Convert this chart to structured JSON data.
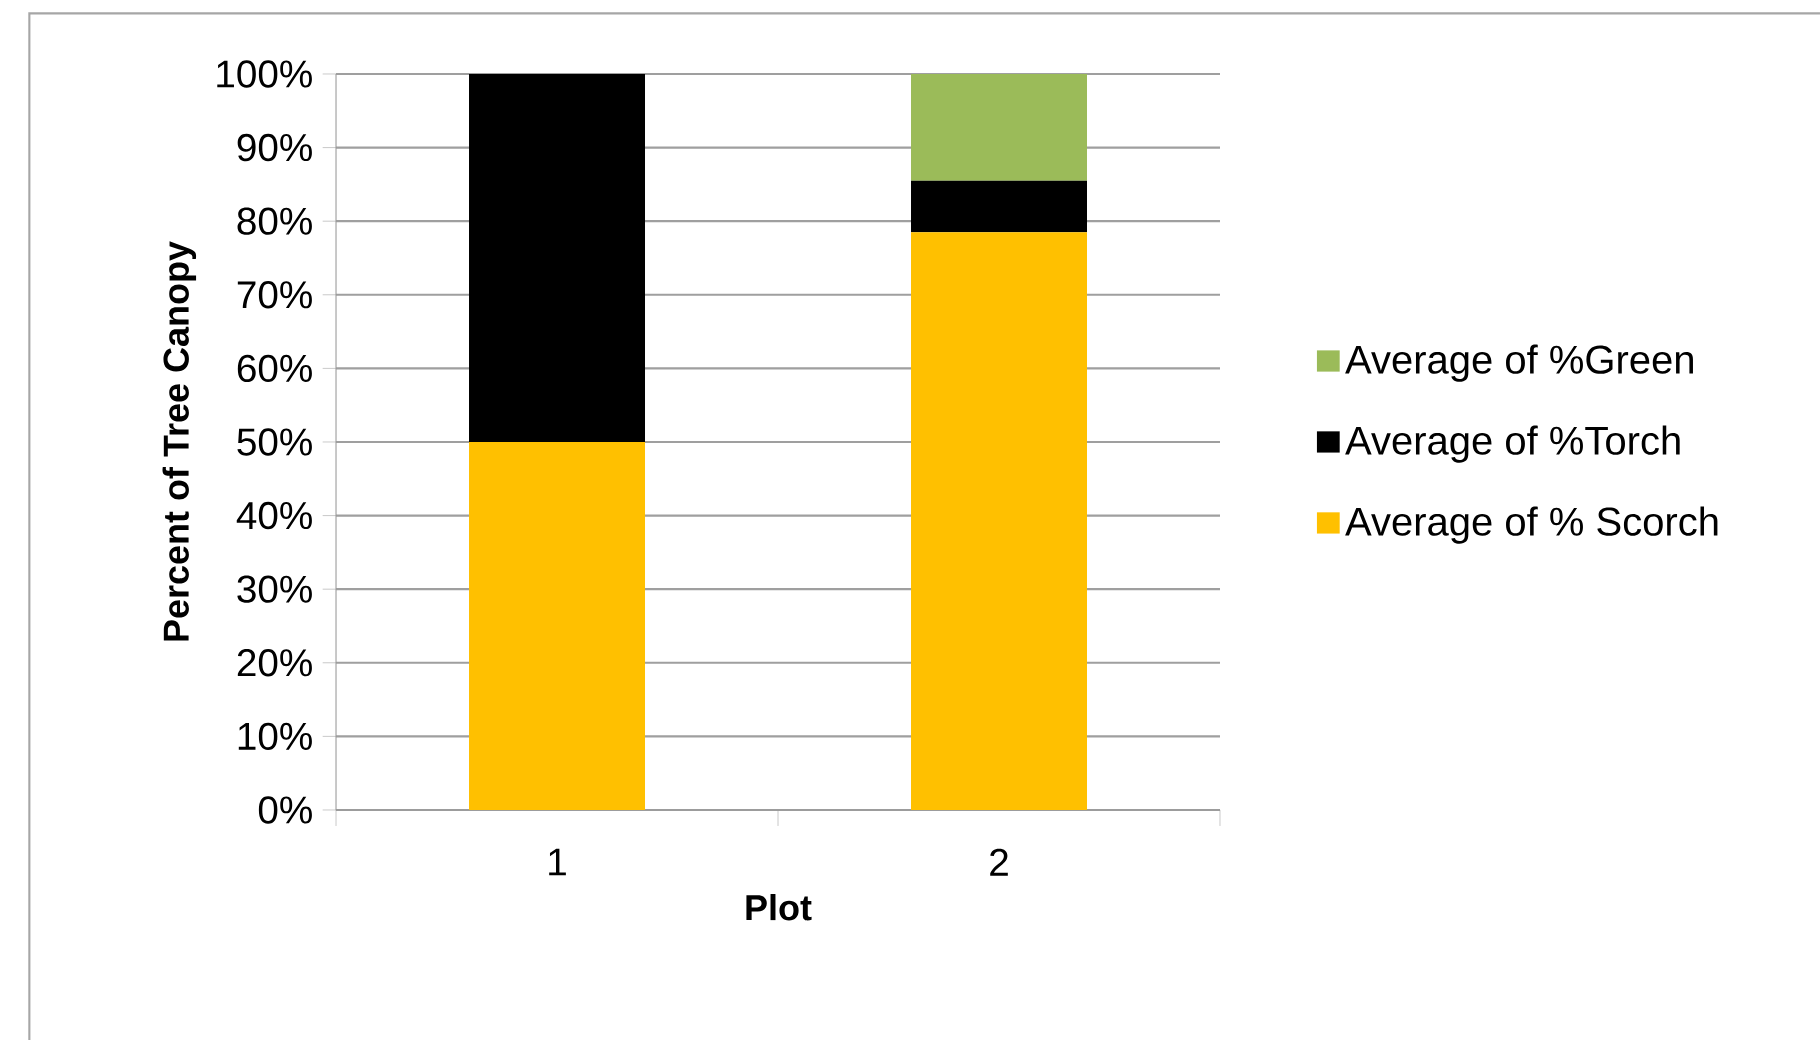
{
  "chart_data": {
    "type": "bar",
    "stacked": true,
    "xlabel": "Plot",
    "ylabel": "Percent of Tree Canopy",
    "categories": [
      "1",
      "2"
    ],
    "series": [
      {
        "name": "Average of % Scorch",
        "color": "#ffc000",
        "values": [
          50,
          78.5
        ]
      },
      {
        "name": "Average of %Torch",
        "color": "#000000",
        "values": [
          50,
          7
        ]
      },
      {
        "name": "Average of %Green",
        "color": "#9bbb59",
        "values": [
          null,
          14.5
        ]
      }
    ],
    "ylim": [
      0,
      100
    ],
    "yticks": [
      {
        "value": 0,
        "label": "0%"
      },
      {
        "value": 10,
        "label": "10%"
      },
      {
        "value": 20,
        "label": "20%"
      },
      {
        "value": 30,
        "label": "30%"
      },
      {
        "value": 40,
        "label": "40%"
      },
      {
        "value": 50,
        "label": "50%"
      },
      {
        "value": 60,
        "label": "60%"
      },
      {
        "value": 70,
        "label": "70%"
      },
      {
        "value": 80,
        "label": "80%"
      },
      {
        "value": 90,
        "label": "90%"
      },
      {
        "value": 100,
        "label": "100%"
      }
    ],
    "grid": "y",
    "legend": "right"
  }
}
